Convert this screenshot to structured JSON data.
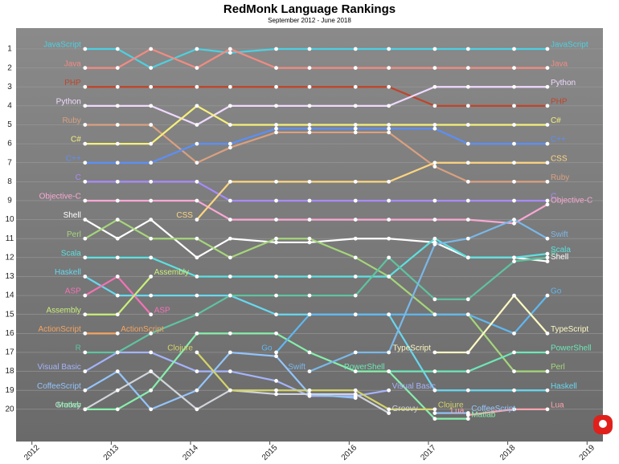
{
  "chart_data": {
    "type": "bump",
    "title": "RedMonk Language Rankings",
    "subtitle": "September 2012 - June 2018",
    "x": [
      2012.67,
      2013.08,
      2013.5,
      2014.08,
      2014.5,
      2015.08,
      2015.5,
      2016.08,
      2016.5,
      2017.08,
      2017.5,
      2018.08,
      2018.5
    ],
    "xlim": [
      2011.8,
      2019.2
    ],
    "xticks": [
      2012,
      2013,
      2014,
      2015,
      2016,
      2017,
      2018,
      2019
    ],
    "ylim": [
      21.7,
      -0.1
    ],
    "yticks": [
      1,
      2,
      3,
      4,
      5,
      6,
      7,
      8,
      9,
      10,
      11,
      12,
      13,
      14,
      15,
      16,
      17,
      18,
      19,
      20
    ],
    "grid": true,
    "series": [
      {
        "name": "JavaScript",
        "color": "#4dd0e1",
        "values": [
          1,
          1,
          2,
          1,
          1.2,
          1,
          1,
          1,
          1,
          1,
          1,
          1,
          1
        ]
      },
      {
        "name": "Java",
        "color": "#f28b82",
        "values": [
          2,
          2,
          1,
          2,
          1,
          2,
          2,
          2,
          2,
          2,
          2,
          2,
          2
        ]
      },
      {
        "name": "PHP",
        "color": "#c0442a",
        "values": [
          3,
          3,
          3,
          3,
          3,
          3,
          3,
          3,
          3,
          4,
          4,
          4,
          4
        ]
      },
      {
        "name": "Python",
        "color": "#f0d9ff",
        "values": [
          4,
          4,
          4,
          5,
          4,
          4,
          4,
          4,
          4,
          3,
          3,
          3,
          3
        ]
      },
      {
        "name": "Ruby",
        "color": "#d9a080",
        "values": [
          5,
          5,
          5,
          7,
          6.2,
          5.4,
          5.4,
          5.4,
          5.4,
          7.2,
          8,
          8,
          8
        ]
      },
      {
        "name": "C#",
        "color": "#f5f07a",
        "values": [
          6,
          6,
          6,
          4,
          5,
          5,
          5,
          5,
          5,
          5,
          5,
          5,
          5
        ]
      },
      {
        "name": "C++",
        "color": "#5b8ff9",
        "values": [
          7,
          7,
          7,
          6,
          6,
          5.2,
          5.2,
          5.2,
          5.2,
          5.2,
          6,
          6,
          6
        ]
      },
      {
        "name": "C",
        "color": "#a78bfa",
        "values": [
          8,
          8,
          8,
          8,
          9,
          9,
          9,
          9,
          9,
          9,
          9,
          9,
          9
        ]
      },
      {
        "name": "Objective-C",
        "color": "#f9a8d4",
        "values": [
          9,
          9,
          9,
          9,
          10,
          10,
          10,
          10,
          10,
          10,
          10,
          10.2,
          9.2
        ]
      },
      {
        "name": "CSS",
        "color": "#fdd580",
        "values": [
          null,
          null,
          null,
          10,
          8,
          8,
          8,
          8,
          8,
          7,
          7,
          7,
          7
        ]
      },
      {
        "name": "Shell",
        "color": "#ffffff",
        "values": [
          10,
          11,
          10,
          12,
          11,
          11.2,
          11.2,
          11,
          11,
          11.2,
          12,
          12,
          12.2
        ]
      },
      {
        "name": "Perl",
        "color": "#a5d67a",
        "values": [
          11,
          10,
          11,
          11,
          12,
          11,
          11,
          12,
          13,
          15,
          15,
          18,
          18
        ]
      },
      {
        "name": "Scala",
        "color": "#5ce0e0",
        "values": [
          12,
          12,
          12,
          13,
          13,
          13,
          13,
          13,
          13,
          11,
          12,
          12,
          11.8
        ]
      },
      {
        "name": "Haskell",
        "color": "#67d8ef",
        "values": [
          13,
          14,
          14,
          14,
          14,
          15,
          15,
          15,
          15,
          19,
          19,
          19,
          19
        ]
      },
      {
        "name": "ASP",
        "color": "#f472b6",
        "values": [
          14,
          13,
          15,
          null,
          null,
          null,
          null,
          null,
          null,
          null,
          null,
          null,
          null
        ]
      },
      {
        "name": "Assembly",
        "color": "#c8f07a",
        "values": [
          15,
          15,
          13,
          null,
          null,
          null,
          null,
          null,
          null,
          null,
          null,
          null,
          null
        ]
      },
      {
        "name": "ActionScript",
        "color": "#f4a460",
        "values": [
          16,
          16,
          null,
          null,
          null,
          null,
          null,
          null,
          null,
          null,
          null,
          null,
          null
        ]
      },
      {
        "name": "R",
        "color": "#5fc3a0",
        "values": [
          17,
          17,
          16,
          15,
          14,
          14,
          14,
          14,
          12,
          14.2,
          14.2,
          12.2,
          12
        ]
      },
      {
        "name": "Visual Basic",
        "color": "#a5b4fc",
        "values": [
          18,
          17,
          17,
          18,
          18,
          18.5,
          19.3,
          19.3,
          19,
          null,
          null,
          null,
          null
        ]
      },
      {
        "name": "CoffeeScript",
        "color": "#93c5fd",
        "values": [
          19,
          18,
          20,
          19,
          17,
          17.2,
          19.2,
          19.4,
          null,
          20.2,
          20.2,
          null,
          null
        ]
      },
      {
        "name": "Groovy",
        "color": "#d1d5db",
        "values": [
          20,
          19,
          18,
          20,
          19,
          19.2,
          19.2,
          19.2,
          20.2,
          null,
          null,
          null,
          null
        ]
      },
      {
        "name": "Matlab",
        "color": "#86efac",
        "values": [
          20,
          20,
          19,
          16,
          16,
          16,
          17,
          18,
          18,
          20.5,
          20.5,
          null,
          null
        ]
      },
      {
        "name": "Clojure",
        "color": "#d4d46a",
        "values": [
          null,
          null,
          null,
          17,
          19,
          19,
          19,
          19,
          20,
          20,
          null,
          null,
          null
        ]
      },
      {
        "name": "Go",
        "color": "#60b8f0",
        "values": [
          null,
          null,
          null,
          null,
          null,
          17,
          15,
          15,
          15,
          15,
          15,
          16,
          14
        ]
      },
      {
        "name": "Swift",
        "color": "#7ab8e8",
        "values": [
          null,
          null,
          null,
          null,
          null,
          null,
          18,
          17,
          17,
          11.3,
          11,
          10,
          11
        ]
      },
      {
        "name": "TypeScript",
        "color": "#fef9c3",
        "values": [
          null,
          null,
          null,
          null,
          null,
          null,
          null,
          null,
          null,
          17,
          17,
          14,
          16
        ]
      },
      {
        "name": "PowerShell",
        "color": "#6ee7b7",
        "values": [
          null,
          null,
          null,
          null,
          null,
          null,
          null,
          null,
          18,
          18,
          18,
          17,
          17
        ]
      },
      {
        "name": "Lua",
        "color": "#fda4af",
        "values": [
          null,
          null,
          null,
          null,
          null,
          null,
          null,
          null,
          null,
          null,
          20.3,
          20,
          20
        ]
      }
    ]
  }
}
